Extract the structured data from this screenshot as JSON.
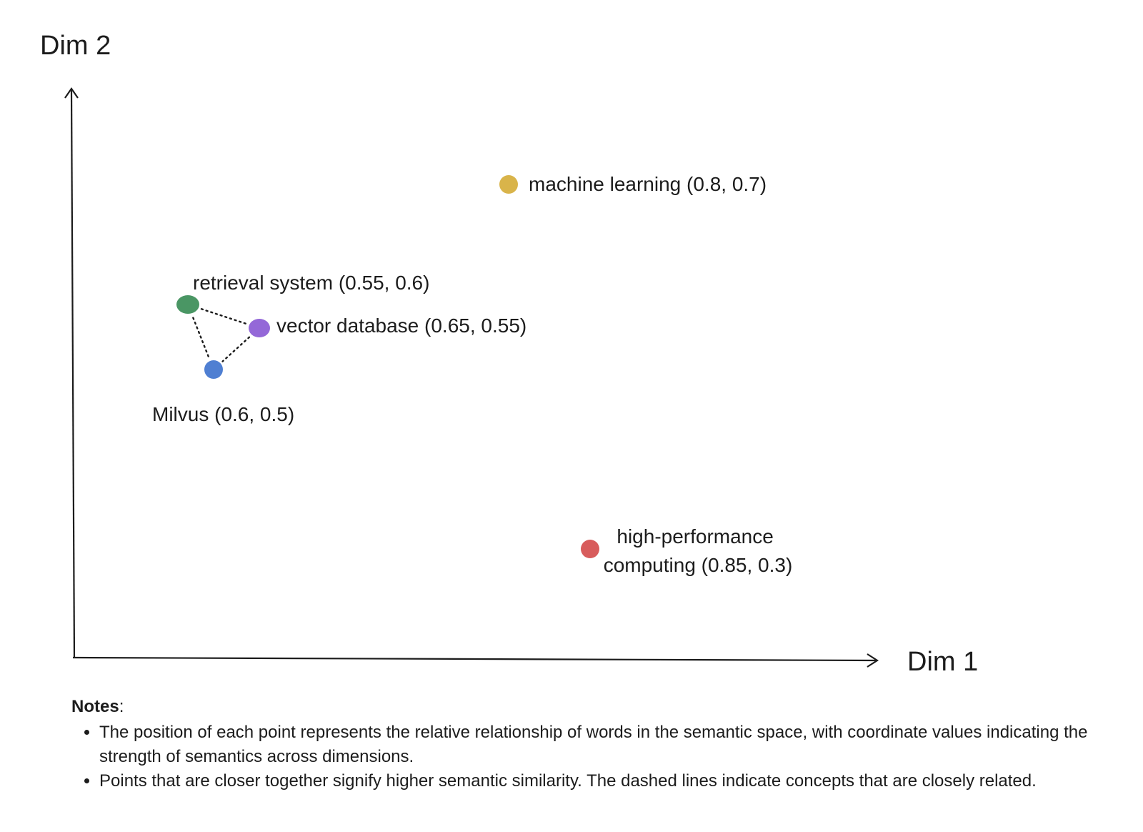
{
  "chart_data": {
    "type": "scatter",
    "xlabel": "Dim 1",
    "ylabel": "Dim 2",
    "grid": false,
    "points": [
      {
        "label": "machine learning (0.8, 0.7)",
        "x": 0.8,
        "y": 0.7,
        "color": "#d9b44a"
      },
      {
        "label": "retrieval system (0.55, 0.6)",
        "x": 0.55,
        "y": 0.6,
        "color": "#4a9664"
      },
      {
        "label": "vector database (0.65, 0.55)",
        "x": 0.65,
        "y": 0.55,
        "color": "#9468d8"
      },
      {
        "label": "Milvus (0.6, 0.5)",
        "x": 0.6,
        "y": 0.5,
        "color": "#4f7fd2"
      },
      {
        "label": "high-performance computing (0.85, 0.3)",
        "x": 0.85,
        "y": 0.3,
        "color": "#d85c5c"
      }
    ],
    "links": [
      [
        "retrieval system (0.55, 0.6)",
        "vector database (0.65, 0.55)"
      ],
      [
        "retrieval system (0.55, 0.6)",
        "Milvus (0.6, 0.5)"
      ],
      [
        "vector database (0.65, 0.55)",
        "Milvus (0.6, 0.5)"
      ]
    ]
  },
  "notes": {
    "heading": "Notes",
    "heading_suffix": ":",
    "items": [
      "The position of each point represents the relative relationship of words in the semantic space, with coordinate values indicating the strength of semantics across dimensions.",
      "Points that are closer together signify higher semantic similarity. The dashed lines indicate concepts that are closely related."
    ]
  }
}
